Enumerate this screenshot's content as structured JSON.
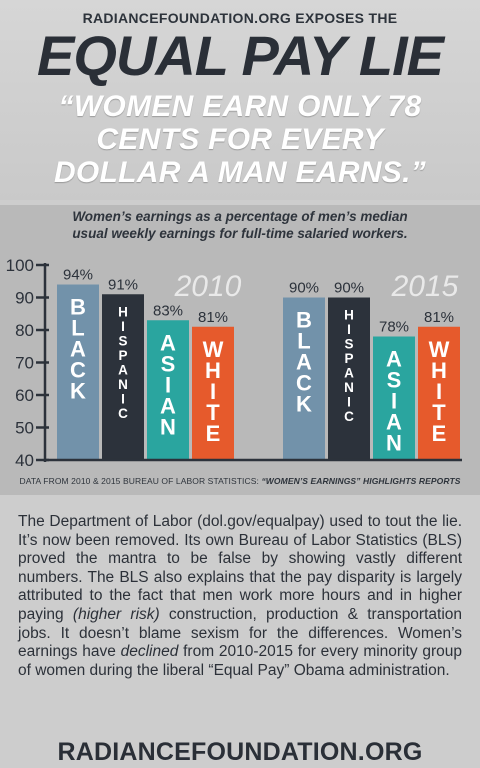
{
  "header": {
    "kicker": "RADIANCEFOUNDATION.ORG EXPOSES THE",
    "title": "EQUAL PAY LIE",
    "quote_lines": [
      "“WOMEN EARN ONLY 78",
      "CENTS FOR EVERY",
      "DOLLAR A MAN EARNS.”"
    ]
  },
  "chart_data": {
    "type": "bar",
    "title": "",
    "subtitle_lines": [
      "Women’s earnings as a percentage of men’s median",
      "usual weekly earnings for full-time salaried workers."
    ],
    "ylim": [
      40,
      100
    ],
    "yticks": [
      40,
      50,
      60,
      70,
      80,
      90,
      100
    ],
    "xlabel": "",
    "ylabel": "",
    "groups": [
      {
        "year": "2010",
        "bars": [
          {
            "label": "BLACK",
            "value": 94,
            "value_label": "94%",
            "color": "#7292aa"
          },
          {
            "label": "HISPANIC",
            "value": 91,
            "value_label": "91%",
            "color": "#2c323b"
          },
          {
            "label": "ASIAN",
            "value": 83,
            "value_label": "83%",
            "color": "#2aa59f"
          },
          {
            "label": "WHITE",
            "value": 81,
            "value_label": "81%",
            "color": "#e65a2c"
          }
        ]
      },
      {
        "year": "2015",
        "bars": [
          {
            "label": "BLACK",
            "value": 90,
            "value_label": "90%",
            "color": "#7292aa"
          },
          {
            "label": "HISPANIC",
            "value": 90,
            "value_label": "90%",
            "color": "#2c323b"
          },
          {
            "label": "ASIAN",
            "value": 78,
            "value_label": "78%",
            "color": "#2aa59f"
          },
          {
            "label": "WHITE",
            "value": 81,
            "value_label": "81%",
            "color": "#e65a2c"
          }
        ]
      }
    ],
    "source_prefix": "DATA FROM 2010 & 2015 BUREAU OF LABOR STATISTICS: ",
    "source_title": "“WOMEN’S EARNINGS” HIGHLIGHTS REPORTS"
  },
  "body": {
    "p1": "The Department of Labor (dol.gov/equalpay) used to tout the lie. It’s now been removed. Its own Bureau of Labor Statistics (BLS) proved the mantra to be false by showing vastly different numbers. The BLS also explains that the pay disparity is largely attributed to the fact that men work more hours and in higher paying ",
    "p1_italic": "(higher risk)",
    "p2": " construction, production & transportation jobs. It doesn’t blame sexism for the differences. Women’s earnings have ",
    "p2_italic": "declined",
    "p3": " from 2010-2015 for every minority group of women during the liberal “Equal Pay” Obama administration."
  },
  "footer": {
    "text": "RADIANCEFOUNDATION.ORG"
  }
}
